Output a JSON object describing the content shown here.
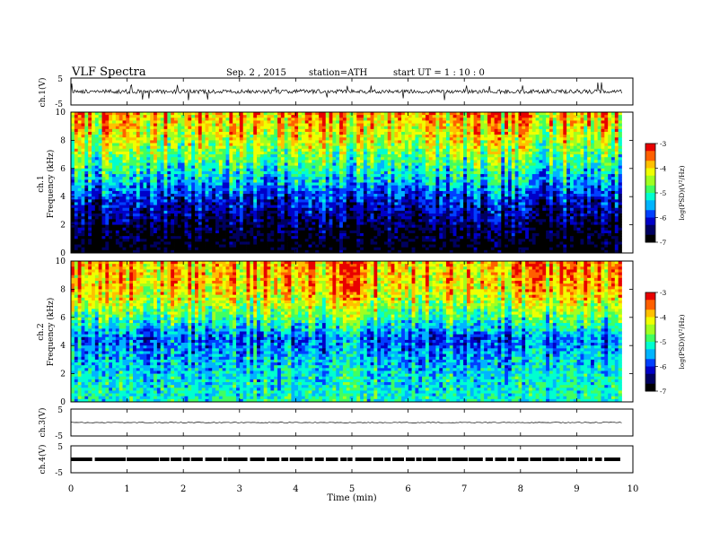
{
  "header": {
    "title": "VLF  Spectra",
    "date": "Sep. 2  , 2015",
    "station": "station=ATH",
    "start": "start  UT  =   1  : 10 : 0"
  },
  "colors": {
    "background": "#ffffff",
    "axis": "#000000",
    "trace": "#000000",
    "colormap": [
      "#000000",
      "#000060",
      "#0000c8",
      "#0040ff",
      "#00b4ff",
      "#00ffd0",
      "#40ff60",
      "#a0ff20",
      "#f0ff00",
      "#ffc000",
      "#ff6000",
      "#e80000",
      "#ffffff"
    ]
  },
  "chart_data": [
    {
      "type": "line",
      "name": "waveform-ch1",
      "ylabel": "ch.1(V)",
      "ylim": [
        -5,
        5
      ],
      "yticks": [
        "5",
        "-5"
      ],
      "x": [
        0,
        1,
        2,
        3,
        4,
        5,
        6,
        7,
        8,
        9,
        9.8
      ],
      "y": [
        0.1,
        -0.2,
        0.3,
        -0.1,
        0.2,
        -0.3,
        0.1,
        0.0,
        -0.2,
        0.2,
        0.0
      ],
      "note_amplitude_volts": 1.5
    },
    {
      "type": "heatmap",
      "name": "spectrogram-ch1",
      "ylabel": "ch.1\nFrequency  (kHz)",
      "xlim": [
        0,
        9.8
      ],
      "ylim": [
        0,
        10
      ],
      "yticks": [
        "0",
        "2",
        "4",
        "6",
        "8",
        "10"
      ],
      "colorbar": {
        "label": "log(PSD)(V²/Hz)",
        "range": [
          -7,
          -3
        ],
        "ticks": [
          "-3",
          "-4",
          "-5",
          "-6",
          "-7"
        ]
      },
      "levels_by_frequency": [
        {
          "f": 0.5,
          "logpsd": -6.9
        },
        {
          "f": 2,
          "logpsd": -6.6
        },
        {
          "f": 4,
          "logpsd": -6.0
        },
        {
          "f": 5,
          "logpsd": -5.5
        },
        {
          "f": 6,
          "logpsd": -5.1
        },
        {
          "f": 7,
          "logpsd": -4.7
        },
        {
          "f": 8,
          "logpsd": -4.3
        },
        {
          "f": 9,
          "logpsd": -4.0
        },
        {
          "f": 10,
          "logpsd": -3.8
        }
      ]
    },
    {
      "type": "heatmap",
      "name": "spectrogram-ch2",
      "ylabel": "ch.2\nFrequency  (kHz)",
      "xlim": [
        0,
        9.8
      ],
      "ylim": [
        0,
        10
      ],
      "yticks": [
        "0",
        "2",
        "4",
        "6",
        "8",
        "10"
      ],
      "colorbar": {
        "label": "log(PSD)(V²/Hz)",
        "range": [
          -7,
          -3
        ],
        "ticks": [
          "-3",
          "-4",
          "-5",
          "-6",
          "-7"
        ]
      },
      "levels_by_frequency": [
        {
          "f": 0.5,
          "logpsd": -5.2
        },
        {
          "f": 2,
          "logpsd": -5.3
        },
        {
          "f": 3.5,
          "logpsd": -5.6
        },
        {
          "f": 4.5,
          "logpsd": -5.8
        },
        {
          "f": 6,
          "logpsd": -4.9
        },
        {
          "f": 7,
          "logpsd": -4.4
        },
        {
          "f": 8,
          "logpsd": -4.0
        },
        {
          "f": 9,
          "logpsd": -3.9
        },
        {
          "f": 10,
          "logpsd": -3.8
        }
      ]
    },
    {
      "type": "line",
      "name": "waveform-ch3",
      "ylabel": "ch.3(V)",
      "ylim": [
        -5,
        5
      ],
      "yticks": [
        "5",
        "-5"
      ],
      "x": [
        0,
        9.8
      ],
      "y": [
        0,
        0
      ]
    },
    {
      "type": "line",
      "name": "waveform-ch4",
      "ylabel": "ch.4(V)",
      "ylim": [
        -5,
        5
      ],
      "yticks": [
        "5",
        "-5"
      ],
      "x": [
        0,
        9.8
      ],
      "y": [
        0,
        0
      ]
    }
  ],
  "xaxis": {
    "label": "Time  (min)",
    "range": [
      0,
      10
    ],
    "ticks": [
      "0",
      "1",
      "2",
      "3",
      "4",
      "5",
      "6",
      "7",
      "8",
      "9",
      "10"
    ]
  }
}
